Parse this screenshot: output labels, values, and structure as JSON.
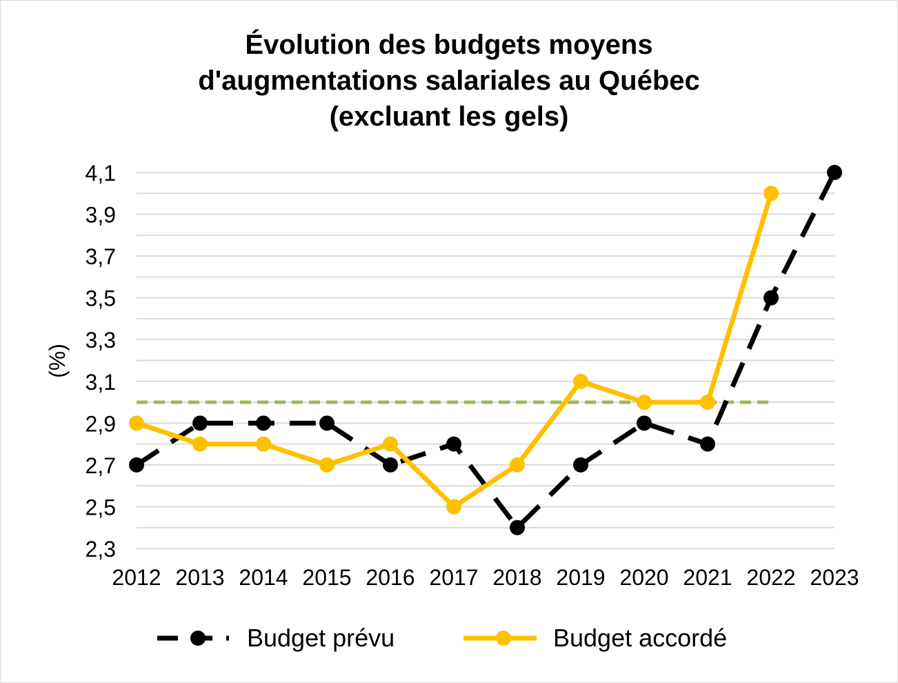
{
  "chart_data": {
    "type": "line",
    "title_lines": [
      "Évolution des budgets moyens",
      "d'augmentations salariales au Québec",
      "(excluant les gels)"
    ],
    "ylabel": "(%)",
    "xlabel": "",
    "categories": [
      "2012",
      "2013",
      "2014",
      "2015",
      "2016",
      "2017",
      "2018",
      "2019",
      "2020",
      "2021",
      "2022",
      "2023"
    ],
    "ylim": [
      2.3,
      4.1
    ],
    "yticks": [
      "2,3",
      "2,5",
      "2,7",
      "2,9",
      "3,1",
      "3,3",
      "3,5",
      "3,7",
      "3,9",
      "4,1"
    ],
    "ytick_values": [
      2.3,
      2.5,
      2.7,
      2.9,
      3.1,
      3.3,
      3.5,
      3.7,
      3.9,
      4.1
    ],
    "grid": true,
    "reference_line": {
      "value": 3.0,
      "color": "#9bbb59",
      "style": "dashed"
    },
    "series": [
      {
        "name": "Budget prévu",
        "color": "#000000",
        "style": "dashed",
        "values": [
          2.7,
          2.9,
          2.9,
          2.9,
          2.7,
          2.8,
          2.4,
          2.7,
          2.9,
          2.8,
          3.5,
          4.1
        ]
      },
      {
        "name": "Budget accordé",
        "color": "#ffc000",
        "style": "solid",
        "values": [
          2.9,
          2.8,
          2.8,
          2.7,
          2.8,
          2.5,
          2.7,
          3.1,
          3.0,
          3.0,
          4.0,
          null
        ]
      }
    ],
    "legend_position": "bottom"
  }
}
